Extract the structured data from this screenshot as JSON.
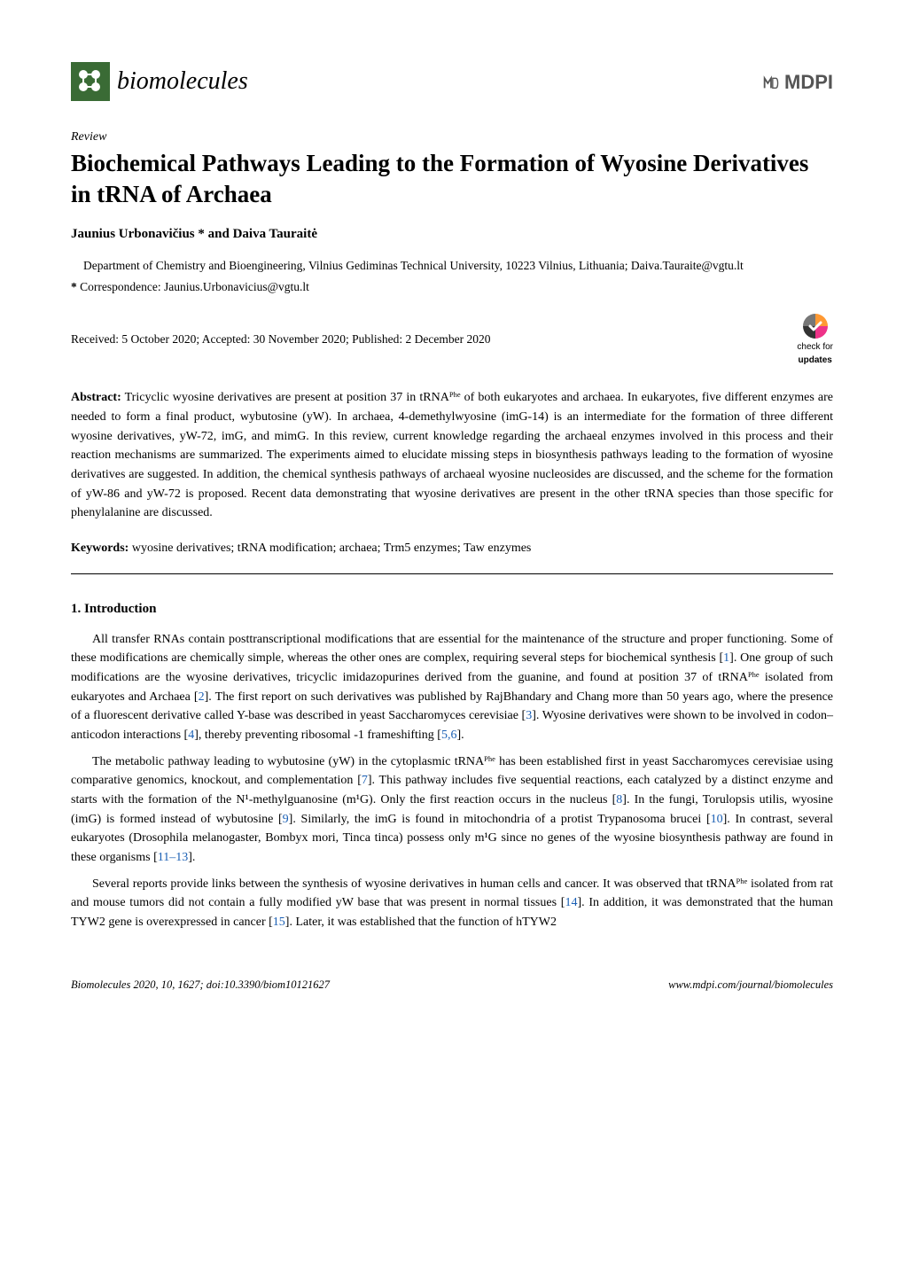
{
  "header": {
    "journal_name": "biomolecules",
    "publisher": "MDPI"
  },
  "article": {
    "type": "Review",
    "title": "Biochemical Pathways Leading to the Formation of Wyosine Derivatives in tRNA of Archaea",
    "authors": "Jaunius Urbonavičius * and Daiva Tauraitė",
    "affiliation": "Department of Chemistry and Bioengineering, Vilnius Gediminas Technical University, 10223 Vilnius, Lithuania; Daiva.Tauraite@vgtu.lt",
    "correspondence_label": "*",
    "correspondence": "Correspondence: Jaunius.Urbonavicius@vgtu.lt",
    "dates": "Received: 5 October 2020; Accepted: 30 November 2020; Published: 2 December 2020",
    "check_updates_line1": "check for",
    "check_updates_line2": "updates"
  },
  "abstract": {
    "label": "Abstract:",
    "text": " Tricyclic wyosine derivatives are present at position 37 in tRNAᴾʰᵉ of both eukaryotes and archaea. In eukaryotes, five different enzymes are needed to form a final product, wybutosine (yW). In archaea, 4-demethylwyosine (imG-14) is an intermediate for the formation of three different wyosine derivatives, yW-72, imG, and mimG. In this review, current knowledge regarding the archaeal enzymes involved in this process and their reaction mechanisms are summarized. The experiments aimed to elucidate missing steps in biosynthesis pathways leading to the formation of wyosine derivatives are suggested. In addition, the chemical synthesis pathways of archaeal wyosine nucleosides are discussed, and the scheme for the formation of yW-86 and yW-72 is proposed. Recent data demonstrating that wyosine derivatives are present in the other tRNA species than those specific for phenylalanine are discussed."
  },
  "keywords": {
    "label": "Keywords:",
    "text": " wyosine derivatives; tRNA modification; archaea; Trm5 enzymes; Taw enzymes"
  },
  "section1": {
    "heading": "1. Introduction",
    "p1": "All transfer RNAs contain posttranscriptional modifications that are essential for the maintenance of the structure and proper functioning. Some of these modifications are chemically simple, whereas the other ones are complex, requiring several steps for biochemical synthesis [1]. One group of such modifications are the wyosine derivatives, tricyclic imidazopurines derived from the guanine, and found at position 37 of tRNAᴾʰᵉ isolated from eukaryotes and Archaea [2]. The first report on such derivatives was published by RajBhandary and Chang more than 50 years ago, where the presence of a fluorescent derivative called Y-base was described in yeast Saccharomyces cerevisiae [3]. Wyosine derivatives were shown to be involved in codon–anticodon interactions [4], thereby preventing ribosomal -1 frameshifting [5,6].",
    "p2": "The metabolic pathway leading to wybutosine (yW) in the cytoplasmic tRNAᴾʰᵉ has been established first in yeast Saccharomyces cerevisiae using comparative genomics, knockout, and complementation [7]. This pathway includes five sequential reactions, each catalyzed by a distinct enzyme and starts with the formation of the N¹-methylguanosine (m¹G). Only the first reaction occurs in the nucleus [8]. In the fungi, Torulopsis utilis, wyosine (imG) is formed instead of wybutosine [9]. Similarly, the imG is found in mitochondria of a protist Trypanosoma brucei [10]. In contrast, several eukaryotes (Drosophila melanogaster, Bombyx mori, Tinca tinca) possess only m¹G since no genes of the wyosine biosynthesis pathway are found in these organisms [11–13].",
    "p3": "Several reports provide links between the synthesis of wyosine derivatives in human cells and cancer. It was observed that tRNAᴾʰᵉ isolated from rat and mouse tumors did not contain a fully modified yW base that was present in normal tissues [14]. In addition, it was demonstrated that the human TYW2 gene is overexpressed in cancer [15]. Later, it was established that the function of hTYW2"
  },
  "footer": {
    "left": "Biomolecules 2020, 10, 1627; doi:10.3390/biom10121627",
    "right": "www.mdpi.com/journal/biomolecules"
  },
  "colors": {
    "journal_icon_bg": "#3a6b35",
    "ref_link": "#1a5fb4",
    "mdpi_gray": "#555555",
    "check_orange": "#ff9933",
    "check_pink": "#ee3388",
    "text": "#000000",
    "bg": "#ffffff"
  }
}
